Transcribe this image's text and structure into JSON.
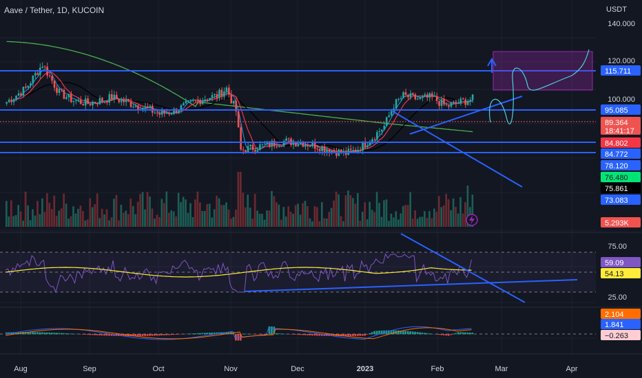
{
  "header": {
    "symbol": "Aave / Tether, 1D, KUCOIN",
    "currency": "USDT"
  },
  "colors": {
    "background": "#131722",
    "up": "#26a69a",
    "down": "#ef5350",
    "drawing": "#2962ff",
    "ma_green": "#4caf50",
    "ma_red": "#f23645",
    "ma_blue": "#2196f3",
    "ma_black": "#000000",
    "box": "#9c27b0",
    "rsi_line": "#7e57c2",
    "rsi_ma": "#ffeb3b",
    "macd_line": "#2962ff",
    "signal_line": "#ff6d00",
    "projection": "#4dd0e1"
  },
  "chart_data": {
    "type": "candlestick",
    "x_ticks": [
      "Aug",
      "Sep",
      "Oct",
      "Nov",
      "Dec",
      "2023",
      "Feb",
      "Mar",
      "Apr"
    ],
    "price_axis": {
      "ticks": [
        "140.000",
        "120.000",
        "100.000"
      ],
      "range": [
        40,
        145
      ]
    },
    "horizontal_levels": [
      115.711,
      95.085,
      84.802,
      84.772
    ],
    "price_labels": [
      {
        "text": "115.711",
        "color": "#2962ff"
      },
      {
        "text": "95.085",
        "color": "#2962ff"
      },
      {
        "text": "89.364",
        "sub": "18:41:17",
        "color": "#ef5350"
      },
      {
        "text": "84.802",
        "color": "#f23645"
      },
      {
        "text": "84.772",
        "color": "#2962ff"
      },
      {
        "text": "78.120",
        "color": "#2962ff"
      },
      {
        "text": "76.480",
        "color": "#00e676"
      },
      {
        "text": "75.861",
        "color": "#000000"
      },
      {
        "text": "73.083",
        "color": "#2962ff"
      },
      {
        "text": "5.293K",
        "color": "#ef5350"
      }
    ],
    "rsi": {
      "ticks": [
        "75.00",
        "25.00"
      ],
      "labels": [
        {
          "text": "59.09",
          "color": "#7e57c2"
        },
        {
          "text": "54.13",
          "color": "#ffeb3b"
        }
      ]
    },
    "macd": {
      "labels": [
        {
          "text": "2.104",
          "color": "#ff6d00"
        },
        {
          "text": "1.841",
          "color": "#2962ff"
        },
        {
          "text": "−0.263",
          "color": "#ffcdd2"
        }
      ]
    }
  }
}
